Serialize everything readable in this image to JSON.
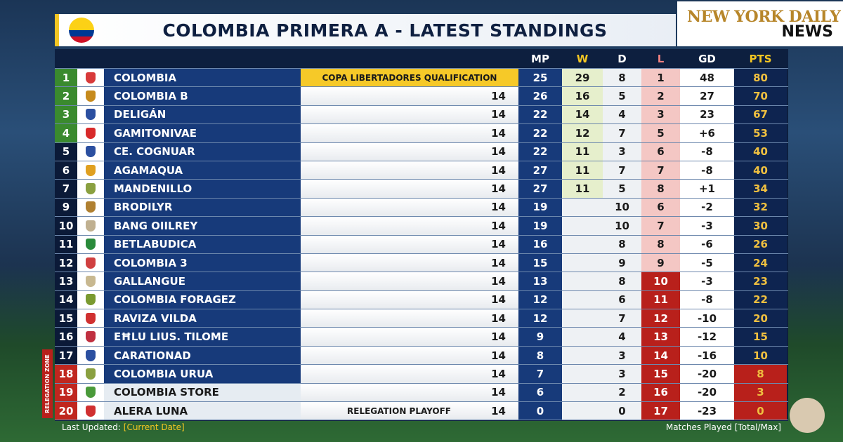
{
  "title": "COLOMBIA PRIMERA A - LATEST STANDINGS",
  "brand": {
    "line1": "NEW YORK DAILY",
    "line2": "NEWS"
  },
  "headers": {
    "mp": "MP",
    "w": "W",
    "d": "D",
    "l": "L",
    "gd": "GD",
    "pts": "PTS"
  },
  "rows": [
    {
      "rank": "1",
      "name": "COLOMBIA",
      "note": "COPA LIBERTADORES QUALIFICATION",
      "mp": "25",
      "w": "29",
      "d": "8",
      "l": "1",
      "gd": "48",
      "pts": "80",
      "zone": "qual",
      "crest": "#d83a3a"
    },
    {
      "rank": "2",
      "name": "COLOMBIA B",
      "note": "14",
      "mp": "26",
      "w": "16",
      "d": "5",
      "l": "2",
      "gd": "27",
      "pts": "70",
      "zone": "qual",
      "crest": "#c68a1c"
    },
    {
      "rank": "3",
      "name": "DELIGÁN",
      "note": "14",
      "mp": "22",
      "w": "14",
      "d": "4",
      "l": "3",
      "gd": "23",
      "pts": "67",
      "zone": "qual",
      "crest": "#2b4fa0"
    },
    {
      "rank": "4",
      "name": "GAMITONIVAE",
      "note": "14",
      "mp": "22",
      "w": "12",
      "d": "7",
      "l": "5",
      "gd": "+6",
      "pts": "53",
      "zone": "qual",
      "crest": "#d82a2a"
    },
    {
      "rank": "5",
      "name": "CE. COGNUAR",
      "note": "14",
      "mp": "22",
      "w": "11",
      "d": "3",
      "l": "6",
      "gd": "-8",
      "pts": "40",
      "zone": "",
      "crest": "#2b4fa0"
    },
    {
      "rank": "6",
      "name": "AGAMAQUA",
      "note": "14",
      "mp": "27",
      "w": "11",
      "d": "7",
      "l": "7",
      "gd": "-8",
      "pts": "40",
      "zone": "",
      "crest": "#e0a020"
    },
    {
      "rank": "7",
      "name": "MANDENILLO",
      "note": "14",
      "mp": "27",
      "w": "11",
      "d": "5",
      "l": "8",
      "gd": "+1",
      "pts": "34",
      "zone": "",
      "crest": "#8aa040"
    },
    {
      "rank": "9",
      "name": "BRODILYR",
      "note": "14",
      "mp": "19",
      "w": "",
      "d": "10",
      "l": "6",
      "gd": "-2",
      "pts": "32",
      "zone": "",
      "crest": "#b08030"
    },
    {
      "rank": "10",
      "name": "BANG OIILREY",
      "note": "14",
      "mp": "19",
      "w": "",
      "d": "10",
      "l": "7",
      "gd": "-3",
      "pts": "30",
      "zone": "",
      "crest": "#c0b090"
    },
    {
      "rank": "11",
      "name": "BETLABUDICA",
      "note": "14",
      "mp": "16",
      "w": "",
      "d": "8",
      "l": "8",
      "gd": "-6",
      "pts": "26",
      "zone": "",
      "crest": "#2a8a3a"
    },
    {
      "rank": "12",
      "name": "COLOMBIA 3",
      "note": "14",
      "mp": "15",
      "w": "",
      "d": "9",
      "l": "9",
      "gd": "-5",
      "pts": "24",
      "zone": "",
      "crest": "#d04040"
    },
    {
      "rank": "13",
      "name": "GALLANGUE",
      "note": "14",
      "mp": "13",
      "w": "",
      "d": "8",
      "l": "10",
      "gd": "-3",
      "pts": "23",
      "zone": "",
      "crest": "#c8b890"
    },
    {
      "rank": "14",
      "name": "COLOMBIA FORAGEZ",
      "note": "14",
      "mp": "12",
      "w": "",
      "d": "6",
      "l": "11",
      "gd": "-8",
      "pts": "22",
      "zone": "",
      "crest": "#7a9a30"
    },
    {
      "rank": "15",
      "name": "RAVIZA VILDA",
      "note": "14",
      "mp": "12",
      "w": "",
      "d": "7",
      "l": "12",
      "gd": "-10",
      "pts": "20",
      "zone": "",
      "crest": "#d03030"
    },
    {
      "rank": "16",
      "name": "EĦLU LIUS. TILOME",
      "note": "14",
      "mp": "9",
      "w": "",
      "d": "4",
      "l": "13",
      "gd": "-12",
      "pts": "15",
      "zone": "",
      "crest": "#c03040"
    },
    {
      "rank": "17",
      "name": "CARATIONAD",
      "note": "14",
      "mp": "8",
      "w": "",
      "d": "3",
      "l": "14",
      "gd": "-16",
      "pts": "10",
      "zone": "",
      "crest": "#2b4fa0"
    },
    {
      "rank": "18",
      "name": "COLOMBIA URUA",
      "note": "14",
      "mp": "7",
      "w": "",
      "d": "3",
      "l": "15",
      "gd": "-20",
      "pts": "8",
      "zone": "rel",
      "crest": "#8aa040"
    },
    {
      "rank": "19",
      "name": "COLOMBIA STORE",
      "note": "14",
      "mp": "6",
      "w": "",
      "d": "2",
      "l": "16",
      "gd": "-20",
      "pts": "3",
      "zone": "rel",
      "crest": "#4a9a3a"
    },
    {
      "rank": "20",
      "name": "ALERA LUNA",
      "note": "14",
      "playoff": "RELEGATION PLAYOFF",
      "mp": "0",
      "w": "",
      "d": "0",
      "l": "17",
      "gd": "-23",
      "pts": "0",
      "zone": "rel",
      "crest": "#d03030"
    }
  ],
  "relegation_zone_label": "RELEGATION ZONE",
  "footer": {
    "updated_label": "Last Updated:",
    "updated_value": "[Current Date]",
    "right": "Matches Played [Total/Max]"
  },
  "colors": {
    "qual": "#3a8a2e",
    "relegation": "#b8201b",
    "accent": "#f3c623",
    "navy": "#173a7a"
  }
}
